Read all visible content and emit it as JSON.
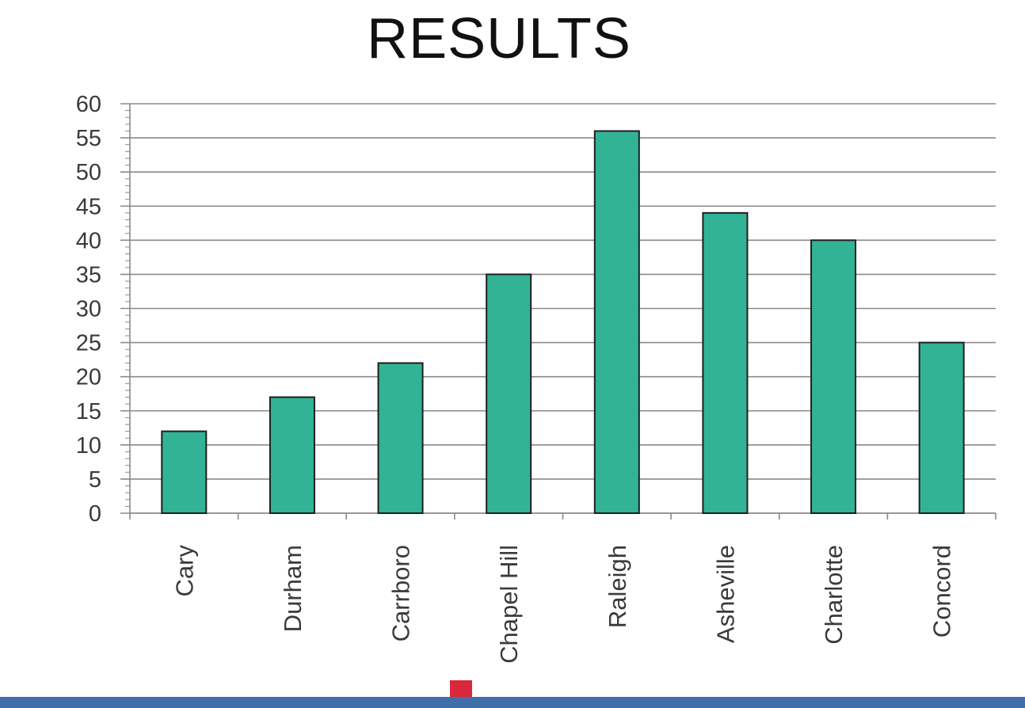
{
  "chart_data": {
    "type": "bar",
    "title": "RESULTS",
    "categories": [
      "Cary",
      "Durham",
      "Carrboro",
      "Chapel Hill",
      "Raleigh",
      "Asheville",
      "Charlotte",
      "Concord"
    ],
    "values": [
      12,
      17,
      22,
      35,
      56,
      44,
      40,
      25
    ],
    "ylim": [
      0,
      60
    ],
    "yticks": [
      0,
      5,
      10,
      15,
      20,
      25,
      30,
      35,
      40,
      45,
      50,
      55,
      60
    ],
    "grid": true,
    "xlabel": "",
    "ylabel": "",
    "bar_color": "#33b396",
    "bar_edge_color": "#1f1f1f"
  },
  "colors": {
    "gridline": "#8a8a8a",
    "taskbar": "#3f6ea8",
    "marker": "#d8283c"
  }
}
